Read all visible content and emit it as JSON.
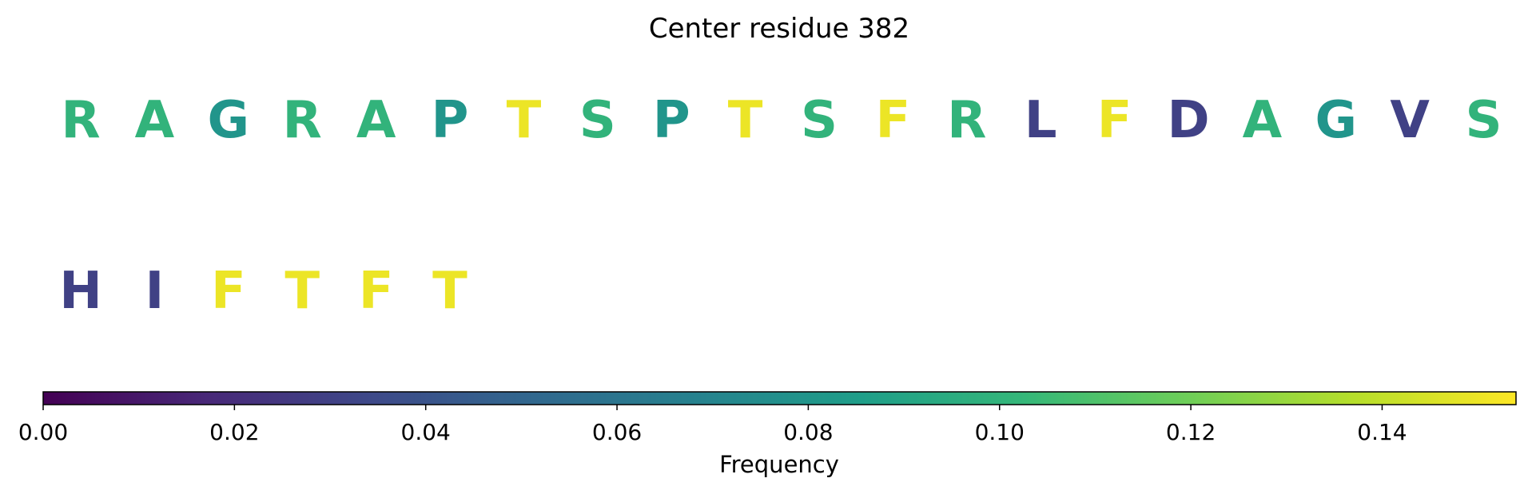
{
  "chart_data": {
    "type": "table",
    "title": "Center residue 382",
    "residues": [
      {
        "letter": "R",
        "frequency": 0.1
      },
      {
        "letter": "A",
        "frequency": 0.1
      },
      {
        "letter": "G",
        "frequency": 0.08
      },
      {
        "letter": "R",
        "frequency": 0.1
      },
      {
        "letter": "A",
        "frequency": 0.1
      },
      {
        "letter": "P",
        "frequency": 0.08
      },
      {
        "letter": "T",
        "frequency": 0.15
      },
      {
        "letter": "S",
        "frequency": 0.1
      },
      {
        "letter": "P",
        "frequency": 0.08
      },
      {
        "letter": "T",
        "frequency": 0.15
      },
      {
        "letter": "S",
        "frequency": 0.1
      },
      {
        "letter": "F",
        "frequency": 0.15
      },
      {
        "letter": "R",
        "frequency": 0.1
      },
      {
        "letter": "L",
        "frequency": 0.03
      },
      {
        "letter": "F",
        "frequency": 0.15
      },
      {
        "letter": "D",
        "frequency": 0.03
      },
      {
        "letter": "A",
        "frequency": 0.1
      },
      {
        "letter": "G",
        "frequency": 0.08
      },
      {
        "letter": "V",
        "frequency": 0.03
      },
      {
        "letter": "S",
        "frequency": 0.1
      },
      {
        "letter": "H",
        "frequency": 0.03
      },
      {
        "letter": "I",
        "frequency": 0.03
      },
      {
        "letter": "F",
        "frequency": 0.15
      },
      {
        "letter": "T",
        "frequency": 0.15
      },
      {
        "letter": "F",
        "frequency": 0.15
      },
      {
        "letter": "T",
        "frequency": 0.15
      }
    ],
    "per_row": 20,
    "colorbar": {
      "label": "Frequency",
      "range": [
        0,
        0.154
      ],
      "ticks": [
        0.0,
        0.02,
        0.04,
        0.06,
        0.08,
        0.1,
        0.12,
        0.14
      ],
      "tick_labels": [
        "0.00",
        "0.02",
        "0.04",
        "0.06",
        "0.08",
        "0.10",
        "0.12",
        "0.14"
      ],
      "colormap": "viridis",
      "colormap_stops": [
        "#440154",
        "#482878",
        "#3e4989",
        "#31688e",
        "#26828e",
        "#1f9e89",
        "#35b779",
        "#6ece58",
        "#b5de2b",
        "#fde725"
      ]
    }
  }
}
